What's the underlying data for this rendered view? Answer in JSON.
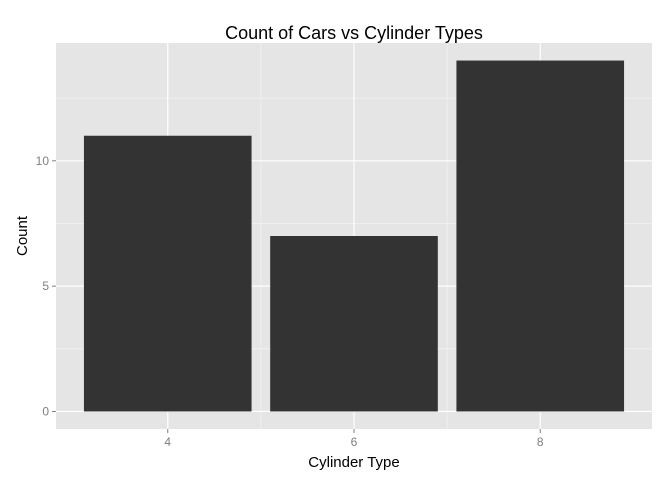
{
  "chart_data": {
    "type": "bar",
    "title": "Count of Cars vs Cylinder Types",
    "xlabel": "Cylinder Type",
    "ylabel": "Count",
    "categories": [
      "4",
      "6",
      "8"
    ],
    "values": [
      11,
      7,
      14
    ],
    "yticks": [
      "0",
      "5",
      "10"
    ],
    "ylim": [
      -0.7,
      14.7
    ],
    "grid": true,
    "legend": "none",
    "colors": {
      "bar": "#333333",
      "panel": "#e5e5e5",
      "grid_major": "#ffffff",
      "grid_minor": "#f2f2f2",
      "tick_label": "#7f7f7f"
    }
  }
}
